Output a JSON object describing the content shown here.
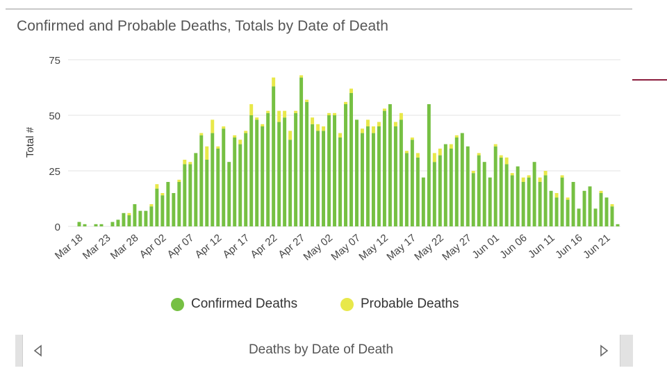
{
  "chart_data": {
    "type": "bar",
    "stacked": true,
    "title": "Confirmed and Probable Deaths, Totals by Date of Death",
    "ylabel": "Total #",
    "xlabel": "",
    "ylim": [
      0,
      75
    ],
    "yticks": [
      0,
      25,
      50,
      75
    ],
    "x_tick_labels": [
      "Mar 18",
      "Mar 23",
      "Mar 28",
      "Apr 02",
      "Apr 07",
      "Apr 12",
      "Apr 17",
      "Apr 22",
      "Apr 27",
      "May 02",
      "May 07",
      "May 12",
      "May 17",
      "May 22",
      "May 27",
      "Jun 01",
      "Jun 06",
      "Jun 11",
      "Jun 16",
      "Jun 21"
    ],
    "start_date": "Mar 18",
    "series": [
      {
        "name": "Confirmed Deaths",
        "color": "#76c043",
        "values": [
          2,
          1,
          0,
          1,
          1,
          0,
          2,
          3,
          6,
          5,
          10,
          7,
          7,
          9,
          17,
          14,
          20,
          15,
          20,
          28,
          28,
          33,
          41,
          30,
          42,
          35,
          44,
          29,
          40,
          37,
          42,
          50,
          48,
          45,
          51,
          63,
          47,
          49,
          39,
          51,
          67,
          56,
          46,
          43,
          43,
          50,
          50,
          40,
          55,
          60,
          48,
          42,
          45,
          42,
          45,
          52,
          55,
          45,
          48,
          33,
          39,
          31,
          22,
          55,
          29,
          32,
          37,
          35,
          40,
          42,
          36,
          24,
          32,
          29,
          22,
          36,
          31,
          28,
          23,
          27,
          20,
          22,
          29,
          20,
          23,
          16,
          13,
          22,
          12,
          20,
          8,
          16,
          18,
          8,
          15,
          13,
          9,
          1
        ]
      },
      {
        "name": "Probable Deaths",
        "color": "#e8e84a",
        "values": [
          0,
          0,
          0,
          0,
          0,
          0,
          0,
          0,
          0,
          1,
          0,
          0,
          0,
          1,
          2,
          1,
          0,
          0,
          1,
          2,
          1,
          0,
          1,
          6,
          6,
          1,
          1,
          0,
          1,
          2,
          1,
          5,
          1,
          1,
          1,
          4,
          5,
          3,
          4,
          1,
          1,
          1,
          3,
          3,
          2,
          1,
          1,
          2,
          1,
          2,
          0,
          2,
          3,
          3,
          2,
          1,
          0,
          2,
          3,
          1,
          1,
          2,
          0,
          0,
          4,
          3,
          0,
          2,
          1,
          0,
          0,
          1,
          1,
          0,
          0,
          1,
          1,
          3,
          1,
          0,
          2,
          1,
          0,
          2,
          2,
          0,
          2,
          1,
          1,
          0,
          0,
          0,
          0,
          0,
          1,
          0,
          1,
          0
        ]
      }
    ]
  },
  "legend": {
    "confirmed_label": "Confirmed Deaths",
    "probable_label": "Probable Deaths"
  },
  "footer": {
    "label": "Deaths by Date of Death",
    "prev_icon": "chevron-left-icon",
    "next_icon": "chevron-right-icon"
  }
}
